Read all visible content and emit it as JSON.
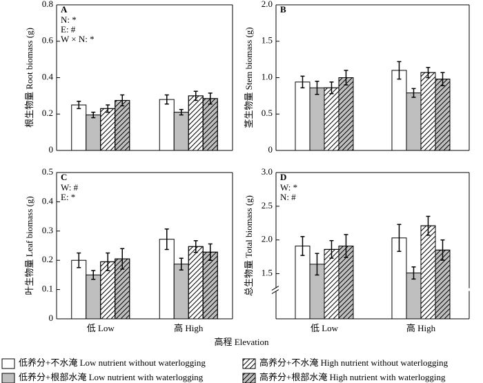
{
  "legend": [
    {
      "name": "低养分+不水淹  Low nutrient without waterlogging",
      "color": "#ffffff",
      "hatch": false
    },
    {
      "name": "低养分+根部水淹  Low nutrient with waterlogging",
      "color": "#bfbfbf",
      "hatch": false
    },
    {
      "name": "高养分+不水淹  High nutrient without waterlogging",
      "color": "#ffffff",
      "hatch": true
    },
    {
      "name": "高养分+根部水淹  High nutrient with waterlogging",
      "color": "#bfbfbf",
      "hatch": true
    }
  ],
  "x_label": "高程 Elevation",
  "chart_data": [
    {
      "type": "bar",
      "panel": "A",
      "y_label": "根生物量 Root biomass (g)",
      "annotations": [
        "N: *",
        "E: #",
        "W × N: *"
      ],
      "ylim": [
        0,
        0.8
      ],
      "yticks": [
        0,
        0.2,
        0.4,
        0.6,
        0.8
      ],
      "series": [
        {
          "values": [
            0.25,
            0.28
          ],
          "errors": [
            0.02,
            0.025
          ]
        },
        {
          "values": [
            0.195,
            0.21
          ],
          "errors": [
            0.015,
            0.015
          ]
        },
        {
          "values": [
            0.23,
            0.3
          ],
          "errors": [
            0.02,
            0.025
          ]
        },
        {
          "values": [
            0.275,
            0.285
          ],
          "errors": [
            0.03,
            0.03
          ]
        }
      ]
    },
    {
      "type": "bar",
      "panel": "B",
      "y_label": "茎生物量 Stem biomass (g)",
      "annotations": [],
      "ylim": [
        0,
        2.0
      ],
      "yticks": [
        0,
        0.5,
        {
          "value": 1,
          "label": "1.0"
        },
        1.5,
        {
          "value": 2,
          "label": "2.0"
        }
      ],
      "series": [
        {
          "values": [
            0.94,
            1.1
          ],
          "errors": [
            0.08,
            0.12
          ]
        },
        {
          "values": [
            0.86,
            0.79
          ],
          "errors": [
            0.09,
            0.06
          ]
        },
        {
          "values": [
            0.86,
            1.07
          ],
          "errors": [
            0.08,
            0.07
          ]
        },
        {
          "values": [
            1.0,
            0.98
          ],
          "errors": [
            0.1,
            0.09
          ]
        }
      ]
    },
    {
      "type": "bar",
      "panel": "C",
      "y_label": "叶生物量 Leaf biomass (g)",
      "annotations": [
        "W: #",
        "E: *"
      ],
      "categories": [
        "低 Low",
        "高 High"
      ],
      "ylim": [
        0,
        0.5
      ],
      "yticks": [
        0,
        0.1,
        0.2,
        0.3,
        0.4,
        0.5
      ],
      "series": [
        {
          "values": [
            0.2,
            0.272
          ],
          "errors": [
            0.025,
            0.035
          ]
        },
        {
          "values": [
            0.15,
            0.187
          ],
          "errors": [
            0.015,
            0.02
          ]
        },
        {
          "values": [
            0.195,
            0.247
          ],
          "errors": [
            0.03,
            0.02
          ]
        },
        {
          "values": [
            0.205,
            0.228
          ],
          "errors": [
            0.035,
            0.028
          ]
        }
      ]
    },
    {
      "type": "bar",
      "panel": "D",
      "y_label": "总生物量 Total biomass (g)",
      "annotations": [
        "W: *",
        "N: #"
      ],
      "categories": [
        "低 Low",
        "高 High"
      ],
      "axis_break": true,
      "ylim": [
        0.83,
        3.0
      ],
      "yticks": [
        1.5,
        {
          "value": 2,
          "label": "2.0"
        },
        2.5,
        {
          "value": 3,
          "label": "3.0"
        }
      ],
      "series": [
        {
          "values": [
            1.91,
            2.03
          ],
          "errors": [
            0.14,
            0.2
          ]
        },
        {
          "values": [
            1.64,
            1.51
          ],
          "errors": [
            0.16,
            0.09
          ]
        },
        {
          "values": [
            1.86,
            2.21
          ],
          "errors": [
            0.13,
            0.14
          ]
        },
        {
          "values": [
            1.91,
            1.85
          ],
          "errors": [
            0.17,
            0.15
          ]
        }
      ]
    }
  ]
}
